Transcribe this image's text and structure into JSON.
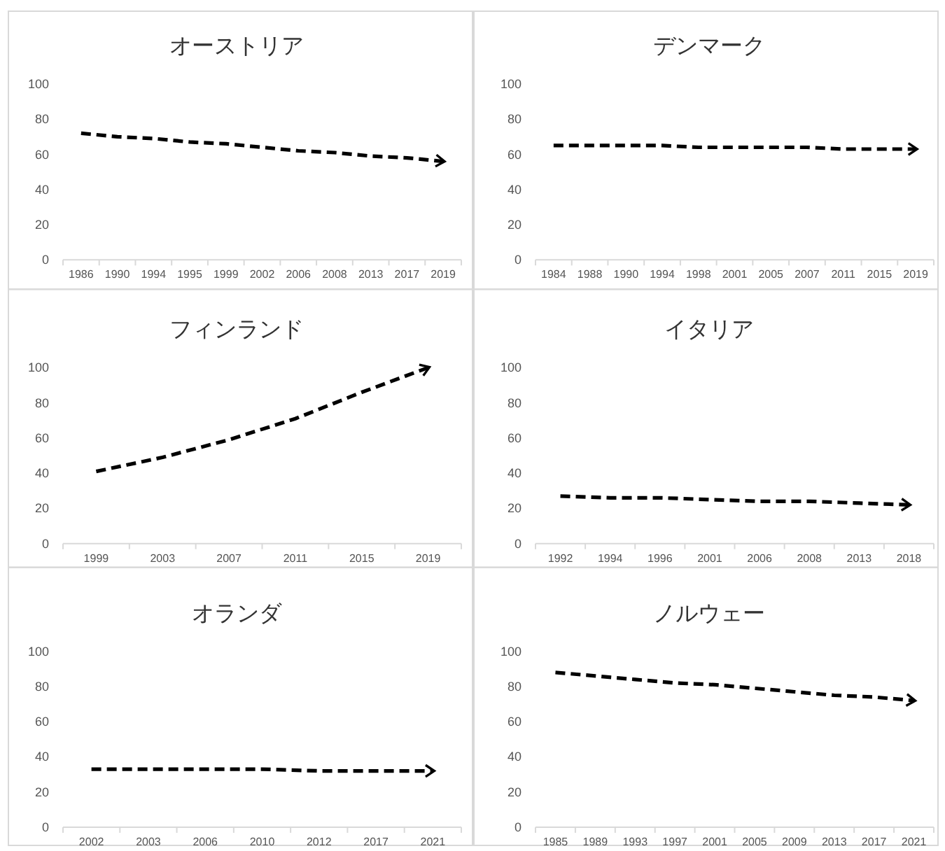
{
  "chart_data": [
    {
      "type": "line",
      "title": "オーストリア",
      "categories": [
        "1986",
        "1990",
        "1994",
        "1995",
        "1999",
        "2002",
        "2006",
        "2008",
        "2013",
        "2017",
        "2019"
      ],
      "values": [
        72,
        70,
        69,
        67,
        66,
        64,
        62,
        61,
        59,
        58,
        56
      ],
      "color": "#000000",
      "line_style": "dashed",
      "ylim": [
        0,
        100
      ],
      "yticks": [
        0,
        20,
        40,
        60,
        80,
        100
      ]
    },
    {
      "type": "line",
      "title": "デンマーク",
      "categories": [
        "1984",
        "1988",
        "1990",
        "1994",
        "1998",
        "2001",
        "2005",
        "2007",
        "2011",
        "2015",
        "2019"
      ],
      "values": [
        65,
        65,
        65,
        65,
        64,
        64,
        64,
        64,
        63,
        63,
        63
      ],
      "color": "#000000",
      "line_style": "dashed",
      "ylim": [
        0,
        100
      ],
      "yticks": [
        0,
        20,
        40,
        60,
        80,
        100
      ]
    },
    {
      "type": "line",
      "title": "フィンランド",
      "categories": [
        "1999",
        "2003",
        "2007",
        "2011",
        "2015",
        "2019"
      ],
      "values": [
        41,
        49,
        59,
        71,
        86,
        100
      ],
      "color": "#000000",
      "line_style": "dashed",
      "ylim": [
        0,
        100
      ],
      "yticks": [
        0,
        20,
        40,
        60,
        80,
        100
      ]
    },
    {
      "type": "line",
      "title": "イタリア",
      "categories": [
        "1992",
        "1994",
        "1996",
        "2001",
        "2006",
        "2008",
        "2013",
        "2018"
      ],
      "values": [
        27,
        26,
        26,
        25,
        24,
        24,
        23,
        22
      ],
      "color": "#000000",
      "line_style": "dashed",
      "ylim": [
        0,
        100
      ],
      "yticks": [
        0,
        20,
        40,
        60,
        80,
        100
      ]
    },
    {
      "type": "line",
      "title": "オランダ",
      "categories": [
        "2002",
        "2003",
        "2006",
        "2010",
        "2012",
        "2017",
        "2021"
      ],
      "values": [
        33,
        33,
        33,
        33,
        32,
        32,
        32
      ],
      "color": "#000000",
      "line_style": "dashed",
      "ylim": [
        0,
        100
      ],
      "yticks": [
        0,
        20,
        40,
        60,
        80,
        100
      ]
    },
    {
      "type": "line",
      "title": "ノルウェー",
      "categories": [
        "1985",
        "1989",
        "1993",
        "1997",
        "2001",
        "2005",
        "2009",
        "2013",
        "2017",
        "2021"
      ],
      "values": [
        88,
        86,
        84,
        82,
        81,
        79,
        77,
        75,
        74,
        72
      ],
      "color": "#000000",
      "line_style": "dashed",
      "ylim": [
        0,
        100
      ],
      "yticks": [
        0,
        20,
        40,
        60,
        80,
        100
      ]
    }
  ]
}
